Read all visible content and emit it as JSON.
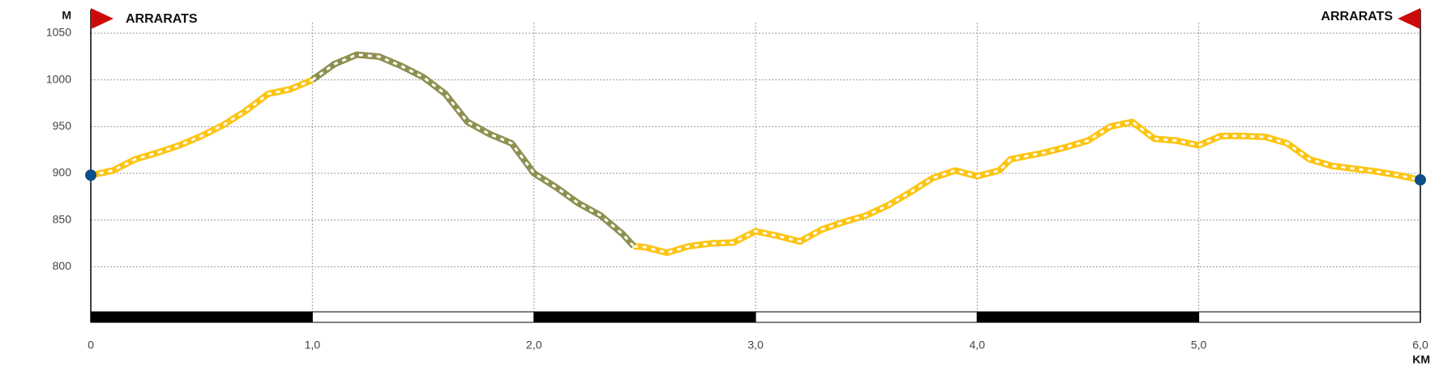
{
  "chart_data": {
    "type": "line",
    "start_label": "ARRARATS",
    "end_label": "ARRARATS",
    "y_label": "M",
    "x_label": "KM",
    "x": [
      0,
      0.1,
      0.2,
      0.3,
      0.4,
      0.5,
      0.6,
      0.7,
      0.8,
      0.9,
      1.0,
      1.1,
      1.2,
      1.3,
      1.4,
      1.5,
      1.6,
      1.7,
      1.8,
      1.9,
      2.0,
      2.1,
      2.2,
      2.3,
      2.4,
      2.45,
      2.5,
      2.6,
      2.7,
      2.8,
      2.9,
      3.0,
      3.1,
      3.2,
      3.3,
      3.4,
      3.5,
      3.6,
      3.7,
      3.8,
      3.9,
      4.0,
      4.1,
      4.15,
      4.3,
      4.4,
      4.5,
      4.6,
      4.7,
      4.8,
      4.9,
      5.0,
      5.1,
      5.2,
      5.3,
      5.4,
      5.5,
      5.6,
      5.7,
      5.8,
      5.9,
      6.0
    ],
    "series": [
      {
        "color": "#fdc412",
        "values": [
          898,
          903,
          915,
          922,
          930,
          940,
          952,
          967,
          985,
          990,
          1000,
          null,
          null,
          null,
          null,
          null,
          null,
          null,
          null,
          null,
          null,
          null,
          null,
          null,
          null,
          822,
          821,
          815,
          822,
          825,
          826,
          838,
          833,
          827,
          840,
          848,
          855,
          866,
          880,
          895,
          903,
          897,
          903,
          915,
          922,
          928,
          935,
          950,
          955,
          937,
          935,
          930,
          940,
          940,
          939,
          932,
          915,
          908,
          905,
          902,
          898,
          893
        ]
      },
      {
        "color": "#8e9050",
        "values": [
          null,
          null,
          null,
          null,
          null,
          null,
          null,
          null,
          null,
          null,
          1000,
          1017,
          1027,
          1025,
          1015,
          1003,
          985,
          955,
          942,
          932,
          900,
          885,
          868,
          855,
          835,
          822,
          null,
          null,
          null,
          null,
          null,
          null,
          null,
          null,
          null,
          null,
          null,
          null,
          null,
          null,
          null,
          null,
          null,
          null,
          null,
          null,
          null,
          null,
          null,
          null,
          null,
          null,
          null,
          null,
          null,
          null,
          null,
          null,
          null,
          null,
          null,
          null
        ]
      }
    ],
    "point_color": "#0c4f8a",
    "flag_color": "#cc0a0a",
    "xlim": [
      0,
      6
    ],
    "xticks": [
      0,
      {
        "value": 1,
        "label": "1,0"
      },
      {
        "value": 2,
        "label": "2,0"
      },
      {
        "value": 3,
        "label": "3,0"
      },
      {
        "value": 4,
        "label": "4,0"
      },
      {
        "value": 5,
        "label": "5,0"
      },
      {
        "value": 6,
        "label": "6,0"
      }
    ],
    "ylim": [
      750,
      1050
    ],
    "yticks": [
      800,
      850,
      900,
      950,
      1000,
      1050
    ],
    "grid": true
  }
}
